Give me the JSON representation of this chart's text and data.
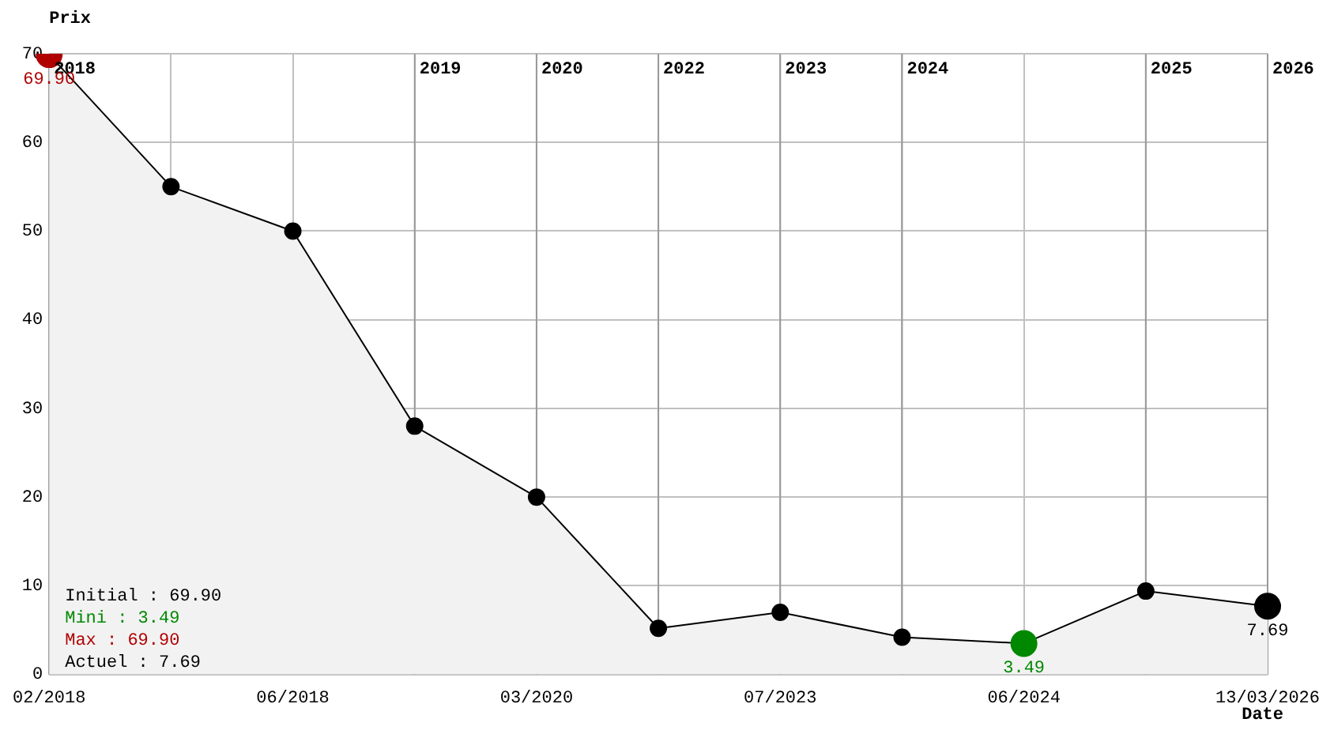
{
  "chart_data": {
    "type": "area",
    "ylabel": "Prix",
    "xlabel": "Date",
    "categories": [
      "02/2018",
      null,
      "06/2018",
      null,
      "03/2020",
      null,
      "07/2023",
      null,
      "06/2024",
      null,
      "13/03/2026"
    ],
    "series": [
      {
        "color": "#000000",
        "values": [
          69.9,
          55,
          50,
          28,
          20,
          5.2,
          7.0,
          4.2,
          3.49,
          9.4,
          7.69
        ],
        "colors": [
          "#b00000",
          "#000000",
          "#000000",
          "#000000",
          "#000000",
          "#000000",
          "#000000",
          "#000000",
          "#008800",
          "#000000",
          "#000000"
        ],
        "value_labels": [
          "69.90",
          null,
          null,
          null,
          null,
          null,
          null,
          null,
          "3.49",
          null,
          "7.69"
        ]
      }
    ],
    "ylim": [
      0,
      70
    ],
    "yticks": [
      0,
      10,
      20,
      30,
      40,
      50,
      60,
      70
    ],
    "grid": true,
    "legend": false,
    "marker": "circle",
    "line_style": "solid",
    "annotations": [
      "2018",
      "2019",
      "2020",
      "2022",
      "2023",
      "2024",
      "2025",
      "2026",
      "Initial : 69.90",
      "Mini : 3.49",
      "Max : 69.90",
      "Actuel : 7.69"
    ]
  }
}
